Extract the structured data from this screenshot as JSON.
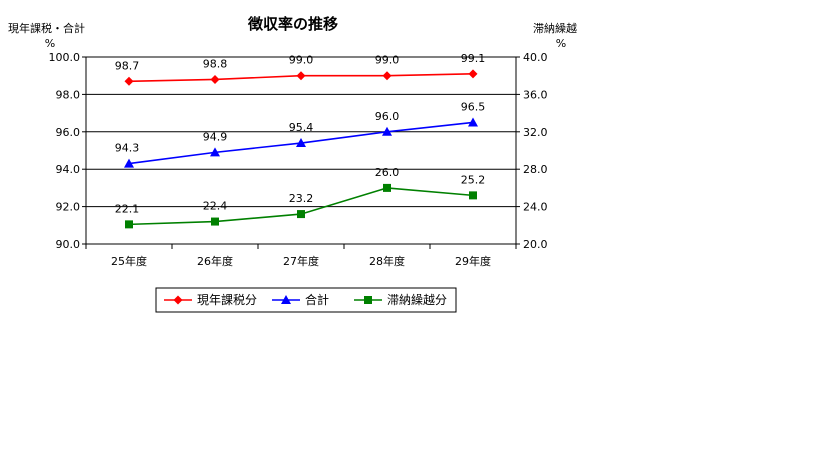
{
  "chart_data": {
    "type": "line",
    "title": "徴収率の推移",
    "left_axis_label": "現年課税・合計",
    "left_axis_unit": "%",
    "right_axis_label": "滞納繰越",
    "right_axis_unit": "%",
    "categories": [
      "25年度",
      "26年度",
      "27年度",
      "28年度",
      "29年度"
    ],
    "left_ylim": [
      90.0,
      100.0
    ],
    "left_ticks": [
      "90.0",
      "92.0",
      "94.0",
      "96.0",
      "98.0",
      "100.0"
    ],
    "right_ylim": [
      20.0,
      40.0
    ],
    "right_ticks": [
      "20.0",
      "24.0",
      "28.0",
      "32.0",
      "36.0",
      "40.0"
    ],
    "grid": true,
    "legend_position": "bottom",
    "series": [
      {
        "name": "現年課税分",
        "axis": "left",
        "color": "#ff0000",
        "marker": "diamond",
        "values": [
          98.7,
          98.8,
          99.0,
          99.0,
          99.1
        ],
        "labels": [
          "98.7",
          "98.8",
          "99.0",
          "99.0",
          "99.1"
        ]
      },
      {
        "name": "合計",
        "axis": "left",
        "color": "#0000ff",
        "marker": "triangle",
        "values": [
          94.3,
          94.9,
          95.4,
          96.0,
          96.5
        ],
        "labels": [
          "94.3",
          "94.9",
          "95.4",
          "96.0",
          "96.5"
        ]
      },
      {
        "name": "滞納繰越分",
        "axis": "right",
        "color": "#008000",
        "marker": "square",
        "values": [
          22.1,
          22.4,
          23.2,
          26.0,
          25.2
        ],
        "labels": [
          "22.1",
          "22.4",
          "23.2",
          "26.0",
          "25.2"
        ]
      }
    ]
  }
}
